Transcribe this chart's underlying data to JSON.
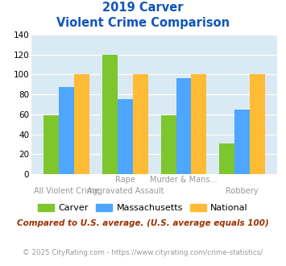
{
  "title_line1": "2019 Carver",
  "title_line2": "Violent Crime Comparison",
  "top_labels": [
    "",
    "Rape",
    "Murder & Mans...",
    ""
  ],
  "bottom_labels": [
    "All Violent Crime",
    "Aggravated Assault",
    "",
    "Robbery"
  ],
  "carver": [
    59,
    120,
    59,
    31
  ],
  "massachusetts": [
    87,
    75,
    96,
    65
  ],
  "national": [
    100,
    100,
    100,
    100
  ],
  "color_carver": "#7dc62e",
  "color_mass": "#4da6ff",
  "color_national": "#ffbb33",
  "ylim": [
    0,
    140
  ],
  "yticks": [
    0,
    20,
    40,
    60,
    80,
    100,
    120,
    140
  ],
  "legend_labels": [
    "Carver",
    "Massachusetts",
    "National"
  ],
  "footnote1": "Compared to U.S. average. (U.S. average equals 100)",
  "footnote2": "© 2025 CityRating.com - https://www.cityrating.com/crime-statistics/",
  "bg_color": "#daeaf5",
  "title_color": "#1155bb",
  "footnote1_color": "#993300",
  "footnote2_color": "#999999",
  "label_color": "#999999"
}
